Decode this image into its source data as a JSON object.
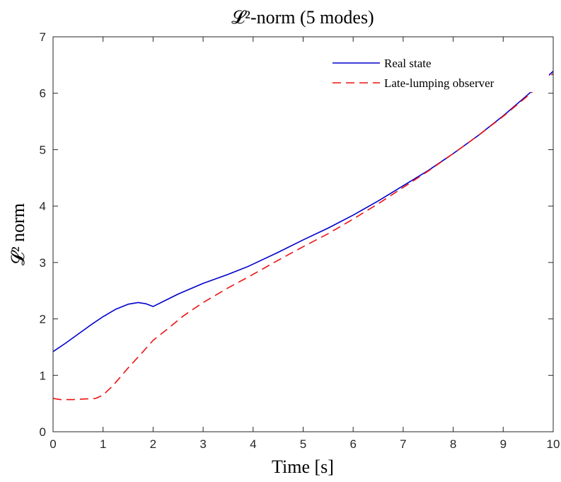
{
  "chart_data": {
    "type": "line",
    "title": "𝓛²-norm (5 modes)",
    "xlabel": "Time [s]",
    "ylabel": "𝓛² norm",
    "xlim": [
      0,
      10
    ],
    "ylim": [
      0,
      7
    ],
    "xticks": [
      0,
      1,
      2,
      3,
      4,
      5,
      6,
      7,
      8,
      9,
      10
    ],
    "yticks": [
      0,
      1,
      2,
      3,
      4,
      5,
      6,
      7
    ],
    "grid": false,
    "legend_position": "top-right",
    "series": [
      {
        "name": "Real state",
        "color": "#0000cc",
        "style": "solid",
        "x": [
          0,
          0.25,
          0.5,
          0.75,
          1.0,
          1.25,
          1.5,
          1.7,
          1.85,
          2.0,
          2.25,
          2.5,
          3.0,
          3.5,
          3.9,
          4.5,
          5.0,
          5.5,
          6.0,
          6.5,
          7.0,
          7.5,
          8.0,
          8.5,
          9.0,
          9.5,
          10.0
        ],
        "y": [
          1.42,
          1.57,
          1.73,
          1.89,
          2.04,
          2.17,
          2.26,
          2.29,
          2.27,
          2.22,
          2.33,
          2.44,
          2.63,
          2.79,
          2.93,
          3.18,
          3.4,
          3.61,
          3.84,
          4.09,
          4.36,
          4.63,
          4.93,
          5.25,
          5.6,
          5.98,
          6.39
        ]
      },
      {
        "name": "Late-lumping observer",
        "color": "#ee1111",
        "style": "dashed",
        "x": [
          0,
          0.15,
          0.4,
          0.6,
          0.85,
          1.0,
          1.2,
          1.5,
          1.8,
          2.0,
          2.3,
          2.6,
          3.0,
          3.5,
          4.0,
          4.5,
          5.0,
          5.5,
          6.0,
          6.5,
          7.0,
          7.5,
          8.0,
          8.5,
          9.0,
          9.5,
          10.0
        ],
        "y": [
          0.59,
          0.57,
          0.57,
          0.58,
          0.59,
          0.65,
          0.82,
          1.13,
          1.42,
          1.62,
          1.83,
          2.05,
          2.29,
          2.55,
          2.79,
          3.04,
          3.28,
          3.51,
          3.77,
          4.04,
          4.33,
          4.62,
          4.93,
          5.25,
          5.59,
          5.96,
          6.35
        ]
      }
    ]
  }
}
